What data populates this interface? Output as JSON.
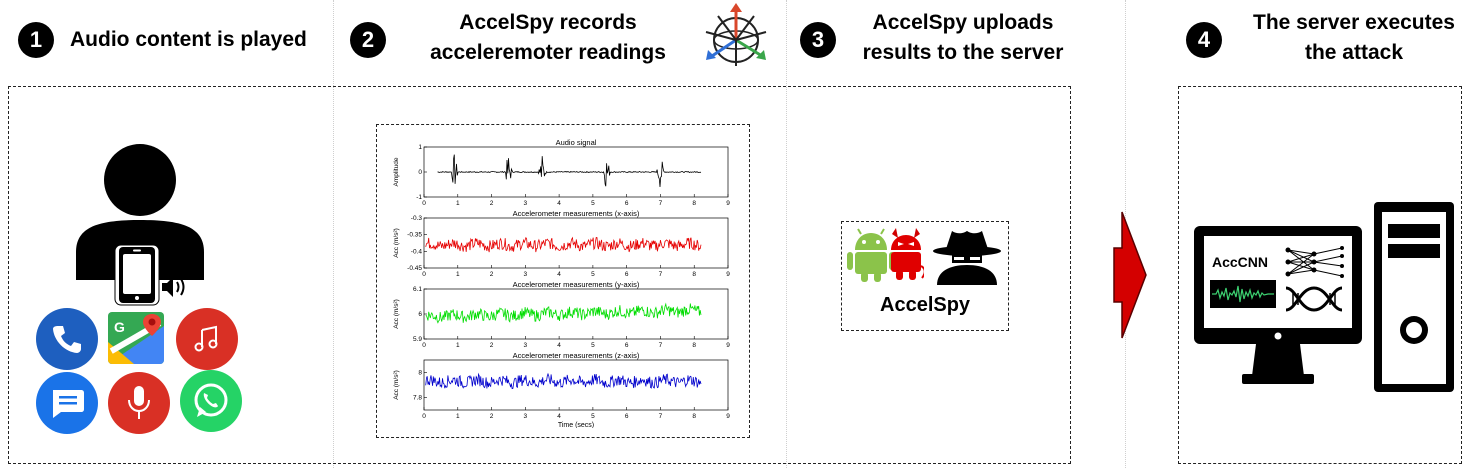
{
  "steps": [
    {
      "number": "1",
      "title": "Audio content is played"
    },
    {
      "number": "2",
      "title_line1": "AccelSpy records",
      "title_line2": "acceleremoter readings"
    },
    {
      "number": "3",
      "title_line1": "AccelSpy uploads",
      "title_line2": "results to the server"
    },
    {
      "number": "4",
      "title_line1": "The server executes",
      "title_line2": "the attack"
    }
  ],
  "chart_data": {
    "type": "line",
    "x_label": "Time (secs)",
    "x_ticks": [
      "0",
      "1",
      "2",
      "3",
      "4",
      "5",
      "6",
      "7",
      "8",
      "9"
    ],
    "panels": [
      {
        "title": "Audio signal",
        "ylabel": "Amplitude",
        "y_ticks": [
          "1",
          "0",
          "-1"
        ],
        "color": "#000000",
        "ylim": [
          -1,
          1
        ],
        "bursts_at": [
          0.9,
          2.5,
          3.5,
          5.4,
          7.0
        ]
      },
      {
        "title": "Accelerometer measurements (x-axis)",
        "ylabel": "Acc (m/s²)",
        "y_ticks": [
          "-0.3",
          "-0.35",
          "-0.4",
          "-0.45"
        ],
        "color": "#e60000",
        "ylim": [
          -0.45,
          -0.3
        ],
        "mean": -0.38
      },
      {
        "title": "Accelerometer measurements (y-axis)",
        "ylabel": "Acc (m/s²)",
        "y_ticks": [
          "6.1",
          "6",
          "5.9"
        ],
        "color": "#00dd00",
        "ylim": [
          5.9,
          6.1
        ],
        "mean": 5.99
      },
      {
        "title": "Accelerometer measurements (z-axis)",
        "ylabel": "Acc (m/s²)",
        "y_ticks": [
          "8",
          "7.8"
        ],
        "color": "#0000cc",
        "ylim": [
          7.7,
          8.1
        ],
        "mean": 7.93
      }
    ]
  },
  "accelspy": {
    "label": "AccelSpy"
  },
  "server": {
    "model_label": "AccCNN"
  },
  "colors": {
    "arrow": "#d40000",
    "android": "#8bc34a",
    "phone_blue": "#1e5fbf",
    "maps_green": "#34a853",
    "music_red": "#d93025",
    "whatsapp": "#25d366"
  },
  "icons": [
    "user-icon",
    "smartphone-icon",
    "speaker-icon",
    "phone-app-icon",
    "maps-app-icon",
    "music-app-icon",
    "messages-app-icon",
    "microphone-app-icon",
    "whatsapp-app-icon",
    "accelerometer-axes-icon",
    "android-icon",
    "devil-android-icon",
    "spy-icon",
    "neural-network-icon",
    "dna-icon",
    "computer-monitor-icon",
    "computer-tower-icon",
    "right-arrow-icon"
  ]
}
